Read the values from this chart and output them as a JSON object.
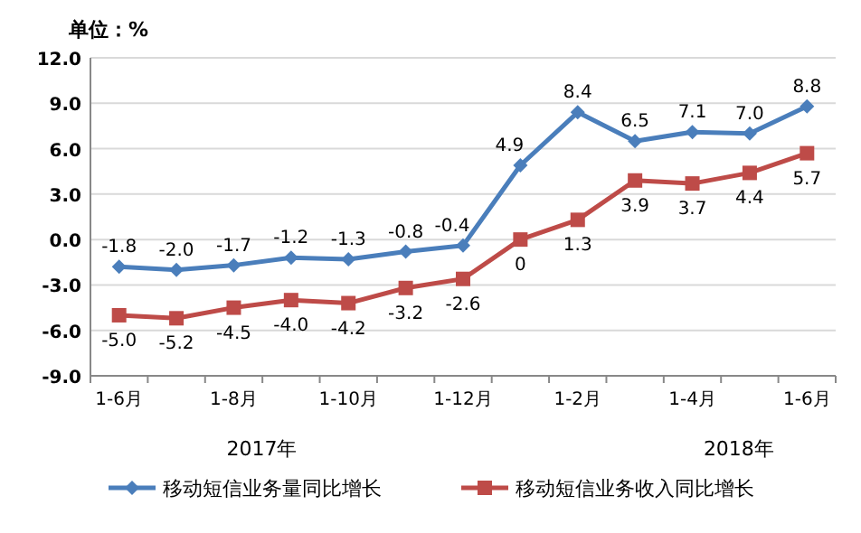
{
  "chart_data": {
    "type": "line",
    "ylabel": "单位：%",
    "categories": [
      "1-6月",
      null,
      "1-8月",
      null,
      "1-10月",
      null,
      "1-12月",
      null,
      "1-2月",
      null,
      "1-4月",
      null,
      "1-6月"
    ],
    "series": [
      {
        "name": "移动短信业务量同比增长",
        "color": "#4a7ebb",
        "marker": "diamond",
        "values": [
          -1.8,
          -2.0,
          -1.7,
          -1.2,
          -1.3,
          -0.8,
          -0.4,
          4.9,
          8.4,
          6.5,
          7.1,
          7.0,
          8.8
        ],
        "value_labels": [
          "-1.8",
          "-2.0",
          "-1.7",
          "-1.2",
          "-1.3",
          "-0.8",
          "-0.4",
          "4.9",
          "8.4",
          "6.5",
          "7.1",
          "7.0",
          "8.8"
        ]
      },
      {
        "name": "移动短信业务收入同比增长",
        "color": "#be4b48",
        "marker": "square",
        "values": [
          -5.0,
          -5.2,
          -4.5,
          -4.0,
          -4.2,
          -3.2,
          -2.6,
          0,
          1.3,
          3.9,
          3.7,
          4.4,
          5.7
        ],
        "value_labels": [
          "-5.0",
          "-5.2",
          "-4.5",
          "-4.0",
          "-4.2",
          "-3.2",
          "-2.6",
          "0",
          "1.3",
          "3.9",
          "3.7",
          "4.4",
          "5.7"
        ]
      }
    ],
    "ylim": [
      -9,
      12
    ],
    "yticks": [
      {
        "value": -9,
        "label": "-9.0"
      },
      {
        "value": -6,
        "label": "-6.0"
      },
      {
        "value": -3,
        "label": "-3.0"
      },
      {
        "value": 0,
        "label": "0.0"
      },
      {
        "value": 3,
        "label": "3.0"
      },
      {
        "value": 6,
        "label": "6.0"
      },
      {
        "value": 9,
        "label": "9.0"
      },
      {
        "value": 12,
        "label": "12.0"
      }
    ],
    "grid": "y",
    "legend": "bottom",
    "annotations": [
      "2017年",
      "2018年"
    ]
  }
}
